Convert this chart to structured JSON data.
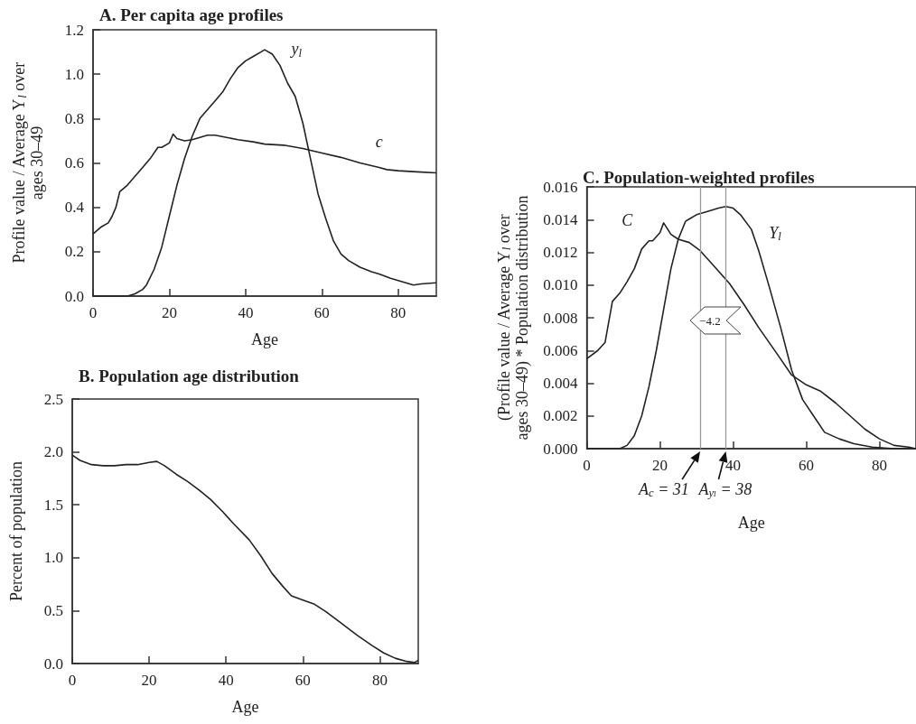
{
  "chart_data": [
    {
      "type": "line",
      "title": "A. Per capita age profiles",
      "xlabel": "Age",
      "ylabel": "Profile value / Average Y$_{l}$ over ages 30–49",
      "xlim": [
        0,
        90
      ],
      "xticks": [
        0,
        20,
        40,
        60,
        80
      ],
      "ylim": [
        0,
        1.2
      ],
      "yticks": [
        {
          "value": 0,
          "label": "0.0"
        },
        0.2,
        0.4,
        0.6,
        0.8,
        {
          "value": 1,
          "label": "1.0"
        },
        1.2
      ],
      "series": [
        {
          "name": "y$_{l}$",
          "color": "#222222",
          "x": [
            0,
            5,
            9,
            11,
            13,
            14,
            16,
            18,
            20,
            22,
            24,
            26,
            28,
            30,
            32,
            34,
            36,
            38,
            40,
            42,
            44,
            45,
            47,
            49,
            51,
            53,
            55,
            57,
            59,
            61,
            63,
            65,
            67,
            70,
            73,
            75,
            78,
            82,
            84,
            86,
            90
          ],
          "values": [
            0,
            0,
            0,
            0.01,
            0.03,
            0.05,
            0.12,
            0.22,
            0.36,
            0.5,
            0.62,
            0.72,
            0.8,
            0.84,
            0.88,
            0.92,
            0.98,
            1.03,
            1.06,
            1.08,
            1.1,
            1.11,
            1.09,
            1.04,
            0.96,
            0.9,
            0.78,
            0.62,
            0.46,
            0.35,
            0.25,
            0.19,
            0.16,
            0.13,
            0.11,
            0.1,
            0.08,
            0.06,
            0.05,
            0.055,
            0.06
          ]
        },
        {
          "name": "c",
          "color": "#222222",
          "x": [
            0,
            2,
            4,
            5,
            6,
            7,
            9,
            11,
            13,
            15,
            17,
            18,
            20,
            21,
            22,
            24,
            26,
            28,
            30,
            32,
            35,
            38,
            42,
            45,
            50,
            55,
            60,
            65,
            70,
            75,
            77,
            80,
            85,
            90
          ],
          "values": [
            0.28,
            0.31,
            0.33,
            0.36,
            0.4,
            0.47,
            0.5,
            0.54,
            0.58,
            0.62,
            0.67,
            0.67,
            0.69,
            0.73,
            0.71,
            0.7,
            0.705,
            0.715,
            0.725,
            0.725,
            0.715,
            0.705,
            0.695,
            0.685,
            0.68,
            0.665,
            0.645,
            0.625,
            0.6,
            0.58,
            0.57,
            0.565,
            0.56,
            0.555
          ]
        }
      ]
    },
    {
      "type": "line",
      "title": "B. Population age distribution",
      "xlabel": "Age",
      "ylabel": "Percent of population",
      "xlim": [
        0,
        90
      ],
      "xticks": [
        0,
        20,
        40,
        60,
        80
      ],
      "ylim": [
        0,
        2.5
      ],
      "yticks": [
        {
          "value": 0,
          "label": "0.0"
        },
        0.5,
        {
          "value": 1,
          "label": "1.0"
        },
        1.5,
        {
          "value": 2,
          "label": "2.0"
        },
        2.5
      ],
      "series": [
        {
          "color": "#222222",
          "x": [
            0,
            2,
            5,
            8,
            11,
            14,
            17,
            20,
            22,
            24,
            27,
            30,
            33,
            36,
            39,
            42,
            46,
            49,
            52,
            55,
            57,
            60,
            63,
            66,
            70,
            74,
            78,
            81,
            84,
            87,
            89,
            90
          ],
          "values": [
            1.97,
            1.92,
            1.88,
            1.87,
            1.87,
            1.88,
            1.88,
            1.9,
            1.91,
            1.87,
            1.79,
            1.72,
            1.64,
            1.55,
            1.44,
            1.32,
            1.17,
            1.02,
            0.85,
            0.72,
            0.64,
            0.6,
            0.56,
            0.49,
            0.38,
            0.27,
            0.17,
            0.1,
            0.05,
            0.02,
            0.01,
            0.03
          ]
        }
      ]
    },
    {
      "type": "line",
      "title": "C. Population-weighted profiles",
      "xlabel": "Age",
      "ylabel": "(Profile value / Average Y$_{l}$ over ages 30–49) * Population distribution",
      "xlim": [
        0,
        90
      ],
      "xticks": [
        0,
        20,
        40,
        60,
        80
      ],
      "ylim": [
        0,
        0.016
      ],
      "yticks": [
        {
          "value": 0,
          "label": "0.000"
        },
        0.002,
        0.004,
        0.006,
        0.008,
        {
          "value": 0.01,
          "label": "0.010"
        },
        0.012,
        0.014,
        0.016
      ],
      "series": [
        {
          "name": "C",
          "color": "#222222",
          "x": [
            0,
            3,
            5,
            7,
            9,
            11,
            13,
            15,
            17,
            18,
            20,
            21,
            23,
            25,
            28,
            31,
            35,
            39,
            43,
            47,
            52,
            56,
            60,
            64,
            68,
            72,
            76,
            80,
            84,
            88,
            90
          ],
          "values": [
            0.0055,
            0.006,
            0.0065,
            0.009,
            0.0095,
            0.0102,
            0.011,
            0.0122,
            0.0127,
            0.0127,
            0.0132,
            0.0138,
            0.0131,
            0.0128,
            0.0126,
            0.0121,
            0.0111,
            0.0101,
            0.0088,
            0.0074,
            0.0058,
            0.0045,
            0.0039,
            0.0035,
            0.0028,
            0.002,
            0.0012,
            0.0006,
            0.0002,
            0.0001,
            0
          ]
        },
        {
          "name": "Y$_{l}$",
          "color": "#222222",
          "x": [
            0,
            9,
            11,
            13,
            15,
            17,
            19,
            21,
            23,
            25,
            27,
            30,
            33,
            36,
            38,
            40,
            42,
            45,
            47,
            50,
            53,
            56,
            59,
            62,
            65,
            69,
            73,
            78,
            84,
            90
          ],
          "values": [
            0,
            0,
            0.0002,
            0.0008,
            0.002,
            0.0038,
            0.006,
            0.0085,
            0.011,
            0.0128,
            0.0139,
            0.0143,
            0.0145,
            0.0147,
            0.0148,
            0.0147,
            0.0143,
            0.0134,
            0.0121,
            0.0098,
            0.0074,
            0.0048,
            0.003,
            0.002,
            0.001,
            0.0006,
            0.0003,
            0.0001,
            0,
            0
          ]
        }
      ],
      "ref_lines": [
        {
          "axis": "x",
          "value": 31,
          "label": "A$_{c}$ = 31",
          "color": "#999999"
        },
        {
          "axis": "x",
          "value": 38,
          "label": "A$_{yₗ}$ = 38",
          "color": "#999999"
        }
      ],
      "annotations": [
        "−4.2"
      ]
    }
  ]
}
